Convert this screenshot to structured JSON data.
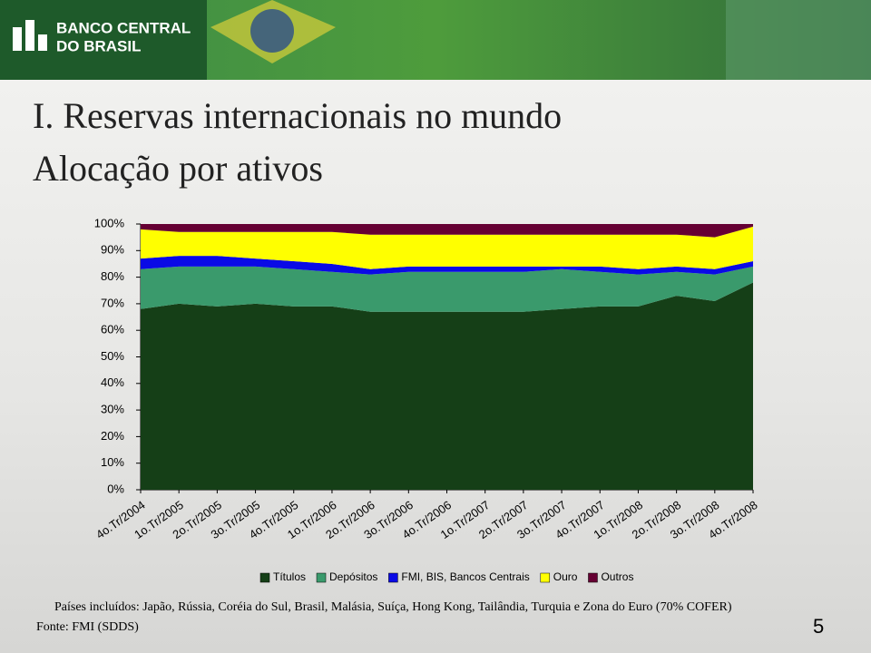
{
  "header": {
    "logo_line1": "BANCO CENTRAL",
    "logo_line2": "DO BRASIL"
  },
  "slide": {
    "title_line1": "I. Reservas internacionais no mundo",
    "title_line2": "Alocação por ativos",
    "note": "Países incluídos: Japão, Rússia, Coréia do Sul, Brasil, Malásia, Suíça, Hong Kong, Tailândia, Turquia e Zona do Euro (70% COFER)",
    "source": "Fonte: FMI (SDDS)",
    "page_number": "5"
  },
  "chart_data": {
    "type": "stacked_area",
    "categories": [
      "4o.Tr/2004",
      "1o.Tr/2005",
      "2o.Tr/2005",
      "3o.Tr/2005",
      "4o.Tr/2005",
      "1o.Tr/2006",
      "2o.Tr/2006",
      "3o.Tr/2006",
      "4o.Tr/2006",
      "1o.Tr/2007",
      "2o.Tr/2007",
      "3o.Tr/2007",
      "4o.Tr/2007",
      "1o.Tr/2008",
      "2o.Tr/2008",
      "3o.Tr/2008",
      "4o.Tr/2008"
    ],
    "series": [
      {
        "name": "Títulos",
        "color": "#153f17",
        "values": [
          68,
          70,
          69,
          70,
          69,
          69,
          67,
          67,
          67,
          67,
          67,
          68,
          69,
          69,
          73,
          71,
          78
        ]
      },
      {
        "name": "Depósitos",
        "color": "#3a9a6c",
        "values": [
          15,
          14,
          15,
          14,
          14,
          13,
          14,
          15,
          15,
          15,
          15,
          15,
          13,
          12,
          9,
          10,
          6
        ]
      },
      {
        "name": "FMI, BIS, Bancos Centrais",
        "color": "#0a0ae6",
        "values": [
          4,
          4,
          4,
          3,
          3,
          3,
          2,
          2,
          2,
          2,
          2,
          1,
          2,
          2,
          2,
          2,
          2
        ]
      },
      {
        "name": "Ouro",
        "color": "#ffff00",
        "values": [
          11,
          9,
          9,
          10,
          11,
          12,
          13,
          12,
          12,
          12,
          12,
          12,
          12,
          13,
          12,
          12,
          13
        ]
      },
      {
        "name": "Outros",
        "color": "#660033",
        "values": [
          2,
          3,
          3,
          3,
          3,
          3,
          4,
          4,
          4,
          4,
          4,
          4,
          4,
          4,
          4,
          5,
          1
        ]
      }
    ],
    "ylim": [
      0,
      100
    ],
    "yticks": [
      {
        "value": 0,
        "label": "0%"
      },
      {
        "value": 10,
        "label": "10%"
      },
      {
        "value": 20,
        "label": "20%"
      },
      {
        "value": 30,
        "label": "30%"
      },
      {
        "value": 40,
        "label": "40%"
      },
      {
        "value": 50,
        "label": "50%"
      },
      {
        "value": 60,
        "label": "60%"
      },
      {
        "value": 70,
        "label": "70%"
      },
      {
        "value": 80,
        "label": "80%"
      },
      {
        "value": 90,
        "label": "90%"
      },
      {
        "value": 100,
        "label": "100%"
      }
    ],
    "legend": "bottom"
  }
}
